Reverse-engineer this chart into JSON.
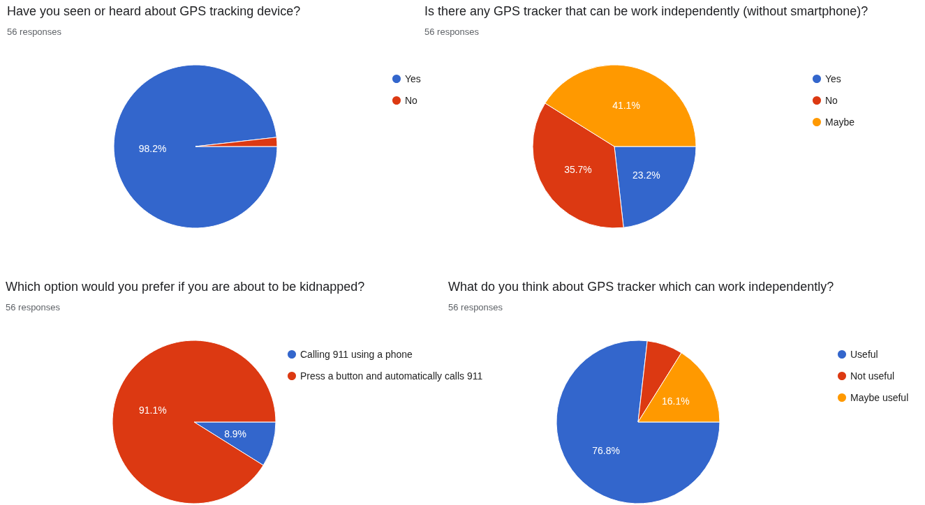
{
  "chart_data": [
    {
      "type": "pie",
      "title": "Have you seen or heard about GPS tracking device?",
      "subtitle": "56 responses",
      "categories": [
        "Yes",
        "No"
      ],
      "values": [
        98.2,
        1.8
      ],
      "colors": [
        "#3366cc",
        "#dc3912"
      ],
      "value_labels": [
        "98.2%",
        null
      ],
      "legend": "top right"
    },
    {
      "type": "pie",
      "title": "Is there any GPS tracker that can be work independently (without smartphone)?",
      "subtitle": "56 responses",
      "categories": [
        "Yes",
        "No",
        "Maybe"
      ],
      "values": [
        23.2,
        35.7,
        41.1
      ],
      "colors": [
        "#3366cc",
        "#dc3912",
        "#ff9900"
      ],
      "value_labels": [
        "23.2%",
        "35.7%",
        "41.1%"
      ],
      "legend": "top right"
    },
    {
      "type": "pie",
      "title": "Which option would you prefer if you are about to be kidnapped?",
      "subtitle": "56 responses",
      "categories": [
        "Calling 911 using a phone",
        "Press a button and automatically calls 911"
      ],
      "values": [
        8.9,
        91.1
      ],
      "colors": [
        "#3366cc",
        "#dc3912"
      ],
      "value_labels": [
        "8.9%",
        "91.1%"
      ],
      "legend": "top right"
    },
    {
      "type": "pie",
      "title": "What do you think about GPS tracker which can work independently?",
      "subtitle": "56 responses",
      "categories": [
        "Useful",
        "Not useful",
        "Maybe useful"
      ],
      "values": [
        76.8,
        7.1,
        16.1
      ],
      "colors": [
        "#3366cc",
        "#dc3912",
        "#ff9900"
      ],
      "value_labels": [
        "76.8%",
        null,
        "16.1%"
      ],
      "legend": "top right"
    }
  ]
}
